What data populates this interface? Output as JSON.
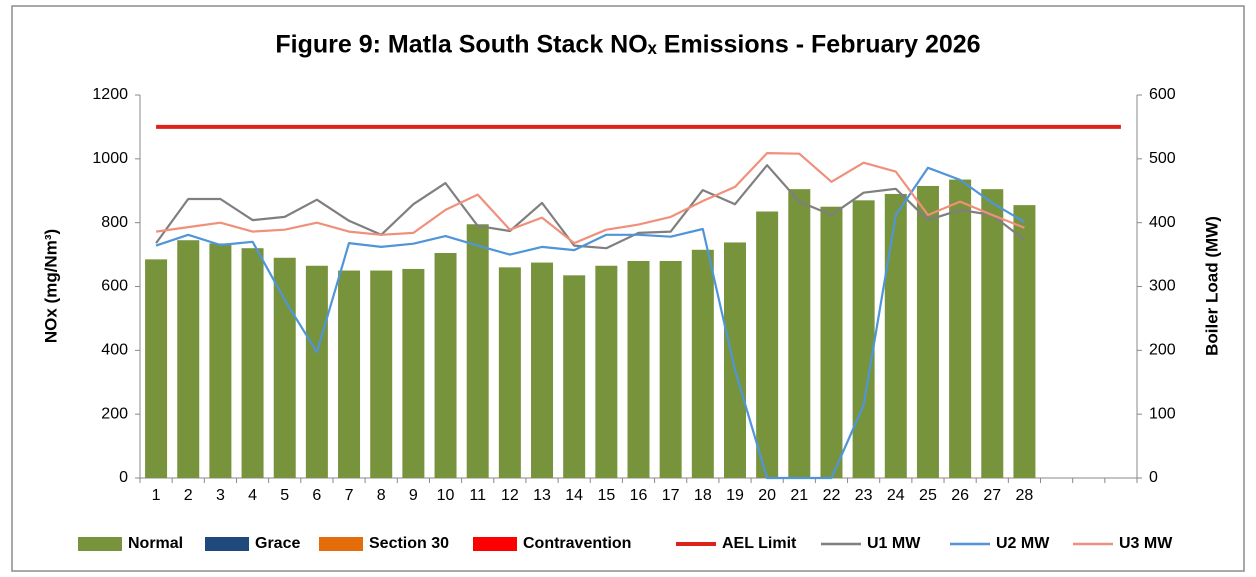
{
  "chart_data": {
    "type": "bar",
    "title": "Figure 9: Matla South Stack NOₓ Emissions - February 2026",
    "ylabel": "NOx (mg/Nm³)",
    "y2label": "Boiler Load (MW)",
    "categories": [
      "1",
      "2",
      "3",
      "4",
      "5",
      "6",
      "7",
      "8",
      "9",
      "10",
      "11",
      "12",
      "13",
      "14",
      "15",
      "16",
      "17",
      "18",
      "19",
      "20",
      "21",
      "22",
      "23",
      "24",
      "25",
      "26",
      "27",
      "28",
      null,
      null,
      null
    ],
    "ylim": [
      0,
      1200
    ],
    "yticks": [
      0,
      200,
      400,
      600,
      800,
      1000,
      1200
    ],
    "y2lim": [
      0,
      600
    ],
    "y2ticks": [
      0,
      100,
      200,
      300,
      400,
      500,
      600
    ],
    "stacked": true,
    "series": [
      {
        "name": "Normal",
        "type": "bar",
        "color": "#77933c",
        "values": [
          685,
          745,
          735,
          720,
          690,
          665,
          650,
          650,
          655,
          705,
          795,
          660,
          675,
          635,
          665,
          680,
          680,
          715,
          738,
          835,
          905,
          850,
          870,
          890,
          915,
          935,
          905,
          855,
          null,
          null,
          null
        ]
      },
      {
        "name": "Grace",
        "type": "bar",
        "color": "#1f497d",
        "values": [
          0,
          0,
          0,
          0,
          0,
          0,
          0,
          0,
          0,
          0,
          0,
          0,
          0,
          0,
          0,
          0,
          0,
          0,
          0,
          0,
          0,
          0,
          0,
          0,
          0,
          0,
          0,
          0,
          null,
          null,
          null
        ]
      },
      {
        "name": "Section 30",
        "type": "bar",
        "color": "#e46c0a",
        "values": [
          0,
          0,
          0,
          0,
          0,
          0,
          0,
          0,
          0,
          0,
          0,
          0,
          0,
          0,
          0,
          0,
          0,
          0,
          0,
          0,
          0,
          0,
          0,
          0,
          0,
          0,
          0,
          0,
          null,
          null,
          null
        ]
      },
      {
        "name": "Contravention",
        "type": "bar",
        "color": "#ff0000",
        "values": [
          0,
          0,
          0,
          0,
          0,
          0,
          0,
          0,
          0,
          0,
          0,
          0,
          0,
          0,
          0,
          0,
          0,
          0,
          0,
          0,
          0,
          0,
          0,
          0,
          0,
          0,
          0,
          0,
          null,
          null,
          null
        ]
      },
      {
        "name": "AEL Limit",
        "type": "line",
        "color": "#e0201b",
        "values": [
          1100,
          1100,
          1100,
          1100,
          1100,
          1100,
          1100,
          1100,
          1100,
          1100,
          1100,
          1100,
          1100,
          1100,
          1100,
          1100,
          1100,
          1100,
          1100,
          1100,
          1100,
          1100,
          1100,
          1100,
          1100,
          1100,
          1100,
          1100,
          1100,
          1100,
          1100
        ]
      },
      {
        "name": "U1 MW",
        "type": "line",
        "axis": "y2",
        "color": "#7f7f7f",
        "values": [
          368,
          437,
          437,
          404,
          409,
          436,
          403,
          381,
          429,
          462,
          395,
          387,
          431,
          364,
          360,
          384,
          386,
          451,
          429,
          490,
          433,
          412,
          447,
          453,
          404,
          420,
          412,
          373,
          null,
          null,
          null
        ]
      },
      {
        "name": "U2 MW",
        "type": "line",
        "axis": "y2",
        "color": "#4f95d8",
        "values": [
          364,
          381,
          365,
          370,
          279,
          197,
          368,
          362,
          367,
          379,
          364,
          350,
          362,
          357,
          381,
          381,
          378,
          390,
          169,
          0,
          0,
          0,
          114,
          412,
          486,
          467,
          431,
          401,
          null,
          null,
          null
        ]
      },
      {
        "name": "U3 MW",
        "type": "line",
        "axis": "y2",
        "color": "#f0907a",
        "values": [
          386,
          393,
          400,
          386,
          389,
          400,
          386,
          381,
          384,
          420,
          444,
          389,
          408,
          368,
          389,
          397,
          409,
          434,
          456,
          509,
          508,
          464,
          494,
          480,
          412,
          433,
          412,
          392,
          null,
          null,
          null
        ]
      }
    ]
  }
}
